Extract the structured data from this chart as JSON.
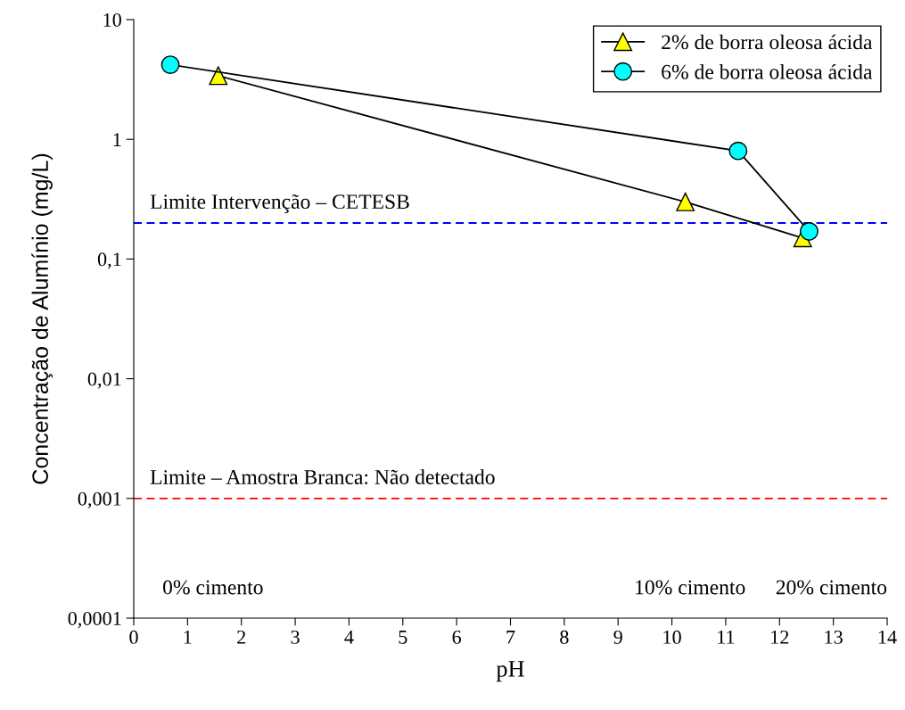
{
  "chart_data": {
    "type": "line",
    "xlabel": "pH",
    "ylabel": "Concentração de Alumínio (mg/L)",
    "log": "y",
    "xlim": [
      0,
      14
    ],
    "xticks": [
      0,
      1,
      2,
      3,
      4,
      5,
      6,
      7,
      8,
      9,
      10,
      11,
      12,
      13,
      14
    ],
    "ylim": [
      0.0001,
      10
    ],
    "yticks": [
      {
        "value": 0.0001,
        "label": "0,0001"
      },
      {
        "value": 0.001,
        "label": "0,001"
      },
      {
        "value": 0.01,
        "label": "0,01"
      },
      {
        "value": 0.1,
        "label": "0,1"
      },
      {
        "value": 1,
        "label": "1"
      },
      {
        "value": 10,
        "label": "10"
      }
    ],
    "series": [
      {
        "name": "2% de borra oleosa ácida",
        "color": "#ffff00",
        "marker": "triangle",
        "x": [
          1.57,
          10.25,
          12.43
        ],
        "values": [
          3.4,
          0.3,
          0.15
        ]
      },
      {
        "name": "6% de borra oleosa ácida",
        "color": "#00ffff",
        "marker": "circle",
        "x": [
          0.68,
          11.23,
          12.55
        ],
        "values": [
          4.2,
          0.8,
          0.17
        ]
      }
    ],
    "ref_lines": [
      {
        "axis": "y",
        "value": 0.2,
        "label": "Limite Intervenção – CETESB",
        "color": "#0000ff",
        "line_style": "dashed"
      },
      {
        "axis": "y",
        "value": 0.001,
        "label": "Limite – Amostra Branca: Não detectado",
        "color": "#ff0000",
        "line_style": "dashed"
      }
    ],
    "annotations": [
      "0% cimento",
      "10% cimento",
      "20% cimento"
    ],
    "legend": "top right",
    "grid": false
  }
}
